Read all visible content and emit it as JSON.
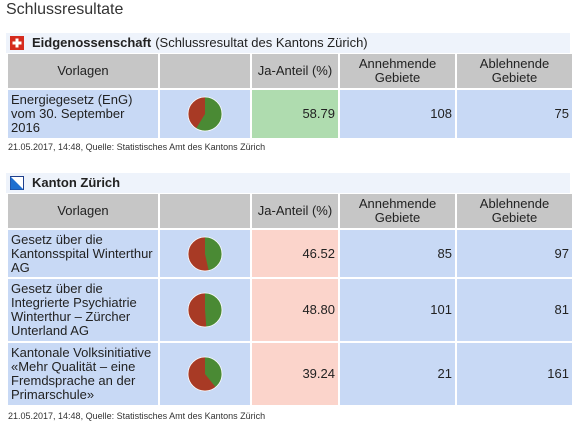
{
  "page_title": "Schlussresultate",
  "headers": {
    "vorlagen": "Vorlagen",
    "ja_anteil": "Ja-Anteil (%)",
    "annehmende": "Annehmende Gebiete",
    "ablehnende": "Ablehnende Gebiete"
  },
  "eidgenossenschaft": {
    "title": "Eidgenossenschaft",
    "subtitle": "(Schlussresultat des Kantons Zürich)",
    "flag_icon": "swiss-flag-icon",
    "rows": [
      {
        "vorlage": "Energiegesetz (EnG) vom 30. September 2016",
        "ja": 58.79,
        "ja_text": "58.79",
        "annehmende": "108",
        "ablehnende": "75"
      }
    ],
    "footnote": "21.05.2017, 14:48, Quelle: Statistisches Amt des Kantons Zürich"
  },
  "kanton": {
    "title": "Kanton Zürich",
    "flag_icon": "zurich-flag-icon",
    "rows": [
      {
        "vorlage": "Gesetz über die Kantonsspital Winterthur AG",
        "ja": 46.52,
        "ja_text": "46.52",
        "annehmende": "85",
        "ablehnende": "97"
      },
      {
        "vorlage": "Gesetz über die Integrierte Psychiatrie Winterthur – Zürcher Unterland AG",
        "ja": 48.8,
        "ja_text": "48.80",
        "annehmende": "101",
        "ablehnende": "81"
      },
      {
        "vorlage": "Kantonale Volksinitiative «Mehr Qualität – eine Fremdsprache an der Primarschule»",
        "ja": 39.24,
        "ja_text": "39.24",
        "annehmende": "21",
        "ablehnende": "161"
      }
    ],
    "footnote": "21.05.2017, 14:48, Quelle: Statistisches Amt des Kantons Zürich"
  },
  "colors": {
    "yes_green": "#4a8a34",
    "no_red": "#a83a25",
    "accepted_bg": "#afdcaf",
    "rejected_bg": "#fbd4cb",
    "cell_blue": "#c8d9f5",
    "header_gray": "#c6c6c6"
  }
}
